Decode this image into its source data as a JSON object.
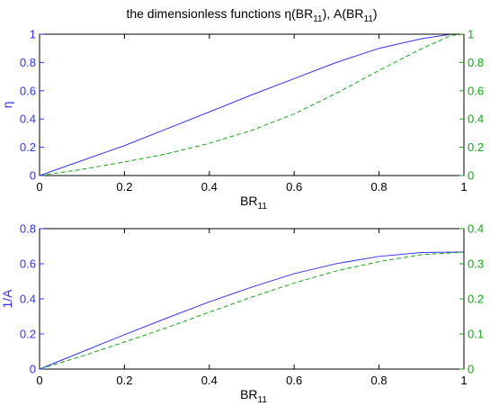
{
  "title": {
    "main": "the dimensionless functions η(BR",
    "sub1": "11",
    "mid": "), A(BR",
    "sub2": "11",
    "end": ")"
  },
  "colors": {
    "blue": "#3333ff",
    "green": "#11aa11",
    "axis": "#000000"
  },
  "chart_data": [
    {
      "type": "line",
      "xlabel": {
        "main": "BR",
        "sub": "11"
      },
      "ylabel_left": "η",
      "ylabel_right": "",
      "xlim": [
        0,
        1
      ],
      "ylim_left": [
        0,
        1
      ],
      "ylim_right": [
        0,
        1
      ],
      "xticks": [
        "0",
        "0.2",
        "0.4",
        "0.6",
        "0.8",
        "1"
      ],
      "xtick_values": [
        0,
        0.2,
        0.4,
        0.6,
        0.8,
        1
      ],
      "yticks_left": [
        "0",
        "0.2",
        "0.4",
        "0.6",
        "0.8",
        "1"
      ],
      "ytick_left_values": [
        0,
        0.2,
        0.4,
        0.6,
        0.8,
        1
      ],
      "yticks_right": [
        "0",
        "0.2",
        "0.4",
        "0.6",
        "0.8",
        "1"
      ],
      "ytick_right_values": [
        0,
        0.2,
        0.4,
        0.6,
        0.8,
        1
      ],
      "grid": false,
      "series": [
        {
          "axis": "left",
          "style": "solid",
          "color": "#3333ff",
          "x": [
            0,
            0.1,
            0.2,
            0.3,
            0.4,
            0.5,
            0.6,
            0.7,
            0.8,
            0.9,
            0.97,
            1.0
          ],
          "y": [
            0,
            0.106,
            0.212,
            0.331,
            0.45,
            0.571,
            0.686,
            0.801,
            0.9,
            0.968,
            1.0,
            1.0
          ]
        },
        {
          "axis": "right",
          "style": "dashed",
          "color": "#11aa11",
          "x": [
            0,
            0.1,
            0.2,
            0.3,
            0.4,
            0.5,
            0.6,
            0.7,
            0.8,
            0.9,
            0.97,
            1.0
          ],
          "y": [
            0,
            0.044,
            0.096,
            0.154,
            0.228,
            0.32,
            0.436,
            0.583,
            0.744,
            0.897,
            0.992,
            1.0
          ]
        }
      ]
    },
    {
      "type": "line",
      "xlabel": {
        "main": "BR",
        "sub": "11"
      },
      "ylabel_left": "1/A",
      "ylabel_right": "",
      "xlim": [
        0,
        1
      ],
      "ylim_left": [
        0,
        0.8
      ],
      "ylim_right": [
        0,
        0.4
      ],
      "xticks": [
        "0",
        "0.2",
        "0.4",
        "0.6",
        "0.8",
        "1"
      ],
      "xtick_values": [
        0,
        0.2,
        0.4,
        0.6,
        0.8,
        1
      ],
      "yticks_left": [
        "0",
        "0.2",
        "0.4",
        "0.6",
        "0.8"
      ],
      "ytick_left_values": [
        0,
        0.2,
        0.4,
        0.6,
        0.8
      ],
      "yticks_right": [
        "0",
        "0.1",
        "0.2",
        "0.3",
        "0.4"
      ],
      "ytick_right_values": [
        0,
        0.1,
        0.2,
        0.3,
        0.4
      ],
      "grid": false,
      "series": [
        {
          "axis": "left",
          "style": "solid",
          "color": "#3333ff",
          "x": [
            0,
            0.1,
            0.2,
            0.3,
            0.4,
            0.5,
            0.6,
            0.7,
            0.8,
            0.9,
            1.0
          ],
          "y": [
            0,
            0.098,
            0.196,
            0.291,
            0.383,
            0.467,
            0.544,
            0.601,
            0.642,
            0.664,
            0.667
          ]
        },
        {
          "axis": "right",
          "style": "dashed",
          "color": "#11aa11",
          "x": [
            0,
            0.1,
            0.2,
            0.3,
            0.4,
            0.5,
            0.6,
            0.7,
            0.8,
            0.9,
            1.0
          ],
          "y": [
            0,
            0.037,
            0.077,
            0.118,
            0.162,
            0.205,
            0.245,
            0.28,
            0.306,
            0.326,
            0.333
          ]
        }
      ]
    }
  ]
}
